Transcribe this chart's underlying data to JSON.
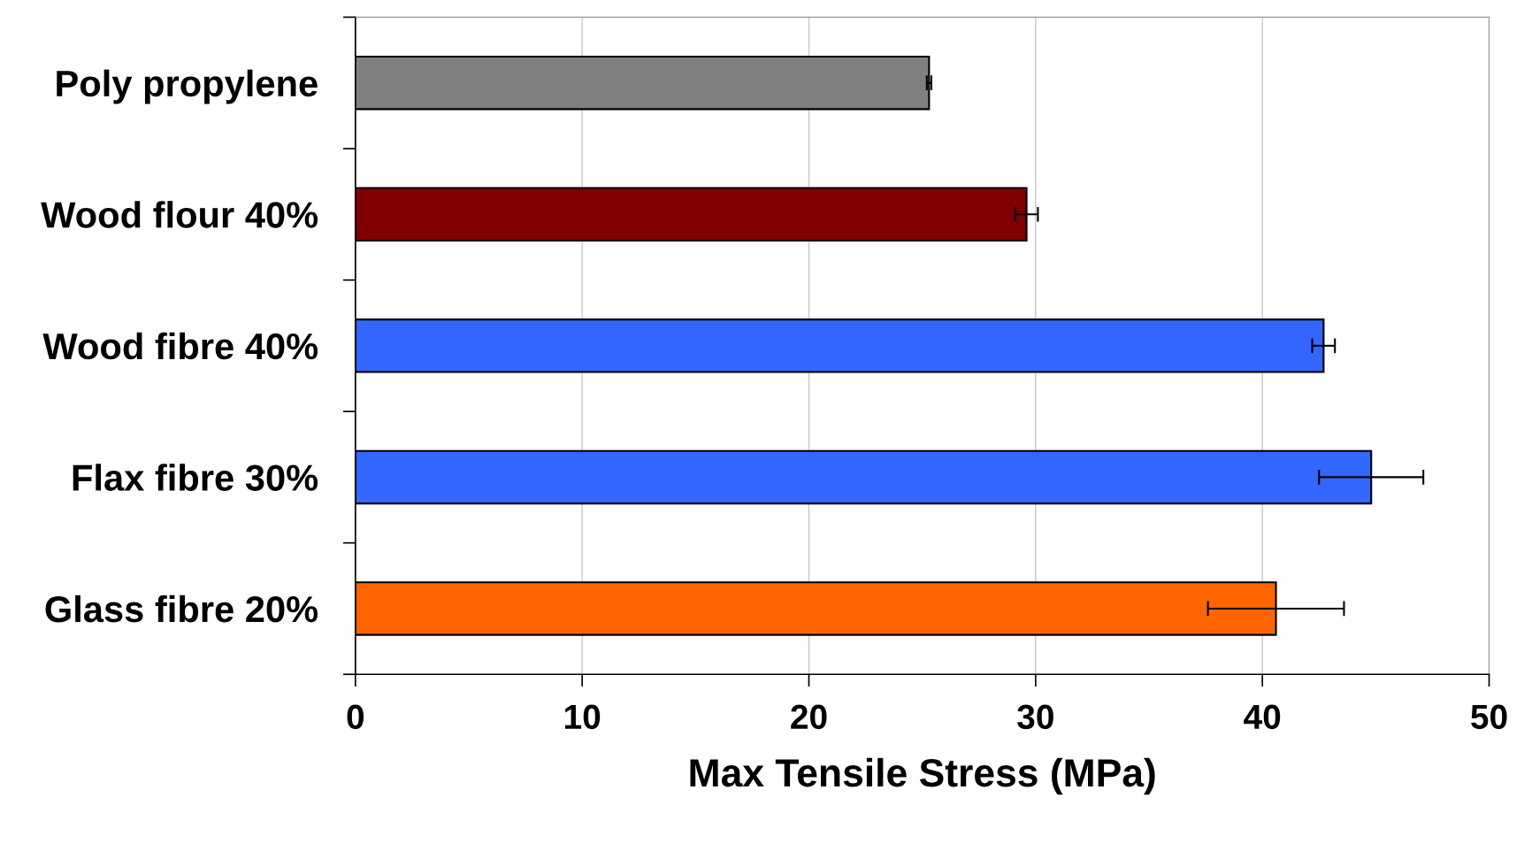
{
  "chart_data": {
    "type": "bar",
    "orientation": "horizontal",
    "xlabel": "Max Tensile Stress (MPa)",
    "categories": [
      "Poly propylene",
      "Wood flour 40%",
      "Wood fibre 40%",
      "Flax fibre 30%",
      "Glass fibre 20%"
    ],
    "values": [
      25.3,
      29.6,
      42.7,
      44.8,
      40.6
    ],
    "errors": [
      0.1,
      0.5,
      0.5,
      2.3,
      3.0
    ],
    "colors": [
      "#808080",
      "#800000",
      "#3366ff",
      "#3366ff",
      "#ff6600"
    ],
    "xlim": [
      0,
      50
    ],
    "xticks": [
      0,
      10,
      20,
      30,
      40,
      50
    ],
    "grid": "x"
  }
}
